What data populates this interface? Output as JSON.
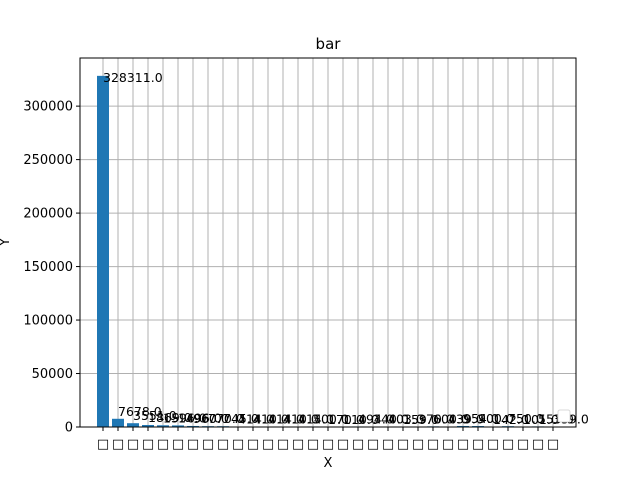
{
  "chart_data": {
    "type": "bar",
    "title": "bar",
    "xlabel": "X",
    "ylabel": "Y",
    "categories": [
      "□",
      "□",
      "□",
      "□",
      "□",
      "□",
      "□",
      "□",
      "□",
      "□",
      "□",
      "□",
      "□",
      "□",
      "□",
      "□",
      "□",
      "□",
      "□",
      "□",
      "□",
      "□",
      "□",
      "□",
      "□",
      "□",
      "□",
      "□",
      "□",
      "□",
      "□"
    ],
    "values": [
      328311.0,
      7678.0,
      3551.0,
      1869.0,
      1596.0,
      1496.0,
      960.0,
      770.0,
      745.0,
      414.0,
      410.0,
      414.0,
      410.0,
      414.0,
      500.0,
      170.0,
      110.0,
      494.0,
      340.0,
      403.0,
      159.0,
      370.0,
      600.0,
      439.0,
      954.0,
      900.0,
      142.0,
      750.0,
      101.0,
      553.0,
      359.0
    ],
    "data_labels": [
      "328311.0",
      "7678.0",
      "3551.0",
      "1869.0",
      "1596.0",
      "1496.0",
      "960.0",
      "770.0",
      "745.0",
      "414.0",
      "410.0",
      "414.0",
      "410.0",
      "414.0",
      "500.0",
      "170.0",
      "110.0",
      "494.0",
      "340.0",
      "403.0",
      "159.0",
      "370.0",
      "600.0",
      "439.0",
      "954.0",
      "900.0",
      "142.0",
      "750.0",
      "101.0",
      "553.0",
      "359.0"
    ],
    "ylim": [
      0,
      345000
    ],
    "yticks": [
      0,
      50000,
      100000,
      150000,
      200000,
      250000,
      300000
    ],
    "ytick_labels": [
      "0",
      "50000",
      "100000",
      "150000",
      "200000",
      "250000",
      "300000"
    ],
    "grid": true,
    "legend": "lower-right",
    "bar_color": "#1f77b4",
    "grid_color": "#b0b0b0"
  }
}
